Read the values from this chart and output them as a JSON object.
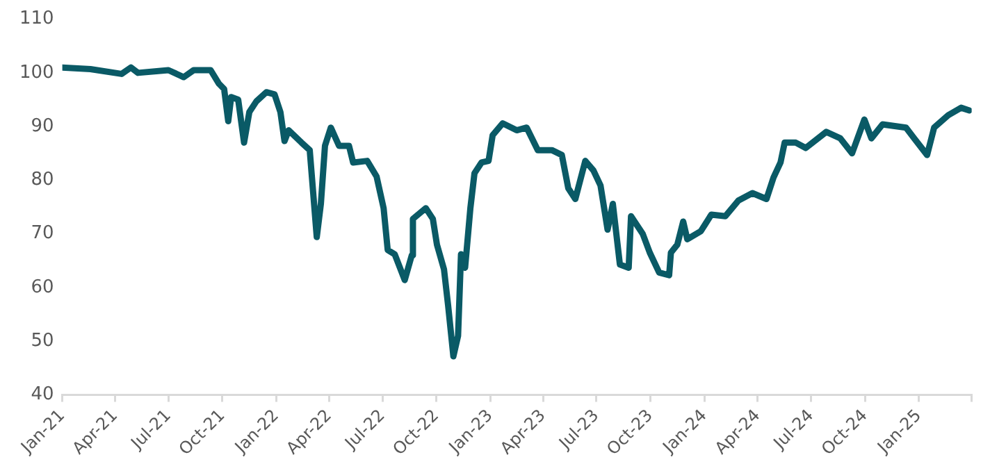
{
  "chart_data": {
    "type": "line",
    "x": [
      "2021-01-01",
      "2021-02-18",
      "2021-04-12",
      "2021-04-28",
      "2021-05-10",
      "2021-07-01",
      "2021-07-27",
      "2021-08-13",
      "2021-09-11",
      "2021-09-25",
      "2021-10-04",
      "2021-10-11",
      "2021-10-16",
      "2021-10-28",
      "2021-11-07",
      "2021-11-16",
      "2021-11-28",
      "2021-12-15",
      "2021-12-29",
      "2022-01-08",
      "2022-01-15",
      "2022-01-22",
      "2022-02-13",
      "2022-02-27",
      "2022-03-07",
      "2022-03-11",
      "2022-03-18",
      "2022-03-25",
      "2022-04-04",
      "2022-04-18",
      "2022-05-05",
      "2022-05-12",
      "2022-06-05",
      "2022-06-21",
      "2022-07-03",
      "2022-07-10",
      "2022-07-22",
      "2022-08-08",
      "2022-08-20",
      "2022-08-22",
      "2022-09-13",
      "2022-09-25",
      "2022-10-02",
      "2022-10-14",
      "2022-10-21",
      "2022-10-30",
      "2022-11-07",
      "2022-11-12",
      "2022-11-19",
      "2022-11-28",
      "2022-12-05",
      "2022-12-17",
      "2022-12-29",
      "2023-01-05",
      "2023-01-22",
      "2023-02-15",
      "2023-03-04",
      "2023-03-23",
      "2023-04-16",
      "2023-05-03",
      "2023-05-14",
      "2023-05-26",
      "2023-06-12",
      "2023-06-26",
      "2023-07-08",
      "2023-07-20",
      "2023-07-29",
      "2023-08-10",
      "2023-08-25",
      "2023-08-29",
      "2023-09-18",
      "2023-09-30",
      "2023-10-16",
      "2023-11-02",
      "2023-11-05",
      "2023-11-16",
      "2023-11-26",
      "2023-12-03",
      "2023-12-26",
      "2024-01-13",
      "2024-02-06",
      "2024-02-28",
      "2024-03-23",
      "2024-04-16",
      "2024-04-28",
      "2024-05-10",
      "2024-05-17",
      "2024-06-05",
      "2024-06-22",
      "2024-07-27",
      "2024-08-20",
      "2024-09-09",
      "2024-09-30",
      "2024-10-12",
      "2024-10-31",
      "2024-12-10",
      "2024-12-24",
      "2025-01-15",
      "2025-01-27",
      "2025-02-20",
      "2025-03-14",
      "2025-03-28"
    ],
    "series": [
      {
        "color": "#0a5a66",
        "values": [
          101,
          100.7,
          99.8,
          101,
          100,
          100.5,
          99.2,
          100.5,
          100.5,
          98,
          97,
          91,
          95.5,
          95,
          87,
          92.7,
          94.7,
          96.4,
          96,
          92.7,
          87.3,
          89.3,
          87,
          85.6,
          74.8,
          69.4,
          75.6,
          86.4,
          89.8,
          86.4,
          86.4,
          83.3,
          83.6,
          80.7,
          74.8,
          67,
          66.2,
          61.4,
          66,
          72.8,
          74.8,
          72.8,
          68,
          63.4,
          56.7,
          47.2,
          51,
          66.2,
          63.7,
          74.8,
          81.3,
          83.3,
          83.6,
          88.4,
          90.6,
          89.3,
          89.8,
          85.6,
          85.6,
          84.7,
          78.5,
          76.5,
          83.6,
          81.8,
          79,
          70.8,
          75.6,
          64.3,
          63.7,
          73.3,
          70,
          66.5,
          62.8,
          62.3,
          66.5,
          68,
          72.3,
          69,
          70.5,
          73.6,
          73.3,
          76.2,
          77.6,
          76.5,
          80.5,
          83.3,
          87,
          87,
          86,
          89,
          87.8,
          85,
          91.3,
          87.8,
          90.4,
          89.8,
          87.8,
          84.7,
          89.8,
          92.1,
          93.5,
          93
        ]
      }
    ],
    "xlim": [
      "2021-01",
      "2025-04"
    ],
    "xticks": [
      {
        "value": "2021-01",
        "label": "Jan-21"
      },
      {
        "value": "2021-04",
        "label": "Apr-21"
      },
      {
        "value": "2021-07",
        "label": "Jul-21"
      },
      {
        "value": "2021-10",
        "label": "Oct-21"
      },
      {
        "value": "2022-01",
        "label": "Jan-22"
      },
      {
        "value": "2022-04",
        "label": "Apr-22"
      },
      {
        "value": "2022-07",
        "label": "Jul-22"
      },
      {
        "value": "2022-10",
        "label": "Oct-22"
      },
      {
        "value": "2023-01",
        "label": "Jan-23"
      },
      {
        "value": "2023-04",
        "label": "Apr-23"
      },
      {
        "value": "2023-07",
        "label": "Jul-23"
      },
      {
        "value": "2023-10",
        "label": "Oct-23"
      },
      {
        "value": "2024-01",
        "label": "Jan-24"
      },
      {
        "value": "2024-04",
        "label": "Apr-24"
      },
      {
        "value": "2024-07",
        "label": "Jul-24"
      },
      {
        "value": "2024-10",
        "label": "Oct-24"
      },
      {
        "value": "2025-01",
        "label": "Jan-25"
      },
      {
        "value": "2025-04",
        "label": null
      }
    ],
    "ylim": [
      40,
      110
    ],
    "yticks": [
      40,
      50,
      60,
      70,
      80,
      90,
      100,
      110
    ],
    "grid": false,
    "legend": false,
    "marker": "none",
    "line_style": "solid"
  }
}
